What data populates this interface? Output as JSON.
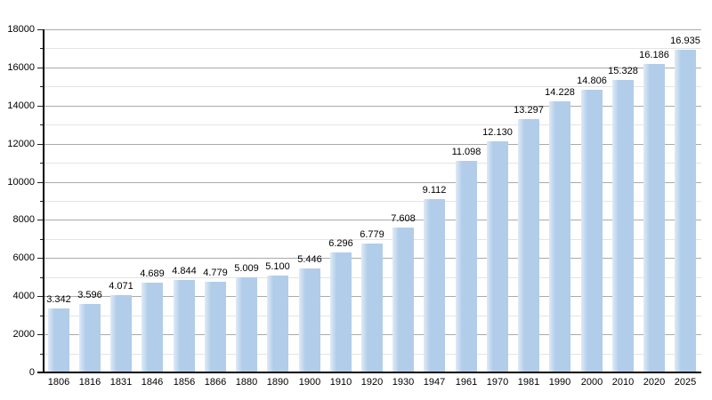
{
  "chart_data": {
    "type": "bar",
    "title": "",
    "categories": [
      "1806",
      "1816",
      "1831",
      "1846",
      "1856",
      "1866",
      "1880",
      "1890",
      "1900",
      "1910",
      "1920",
      "1930",
      "1947",
      "1961",
      "1970",
      "1981",
      "1990",
      "2000",
      "2010",
      "2020",
      "2025"
    ],
    "values": [
      3342,
      3596,
      4071,
      4689,
      4844,
      4779,
      5009,
      5100,
      5446,
      6296,
      6779,
      7608,
      9112,
      11098,
      12130,
      13297,
      14228,
      14806,
      15328,
      16186,
      16935
    ],
    "bar_labels": [
      "3.342",
      "3.596",
      "4.071",
      "4.689",
      "4.844",
      "4.779",
      "5.009",
      "5.100",
      "5.446",
      "6.296",
      "6.779",
      "7.608",
      "9.112",
      "11.098",
      "12.130",
      "13.297",
      "14.228",
      "14.806",
      "15.328",
      "16.186",
      "16.935"
    ],
    "xlabel": "",
    "ylabel": "",
    "ylim": [
      0,
      18000
    ],
    "y_major_step": 2000,
    "y_minor_step": 1000,
    "y_tick_labels": [
      "0",
      "2000",
      "4000",
      "6000",
      "8000",
      "10000",
      "12000",
      "14000",
      "16000",
      "18000"
    ],
    "grid": "on",
    "legend_position": "none",
    "colors": {
      "bar_main": "#b1cde9",
      "bar_light_edge": "#dfeaf6",
      "major_grid": "#aaaaaa",
      "minor_grid": "#e4e4e4",
      "axis": "#000000",
      "text": "#000000",
      "background": "#ffffff"
    }
  }
}
